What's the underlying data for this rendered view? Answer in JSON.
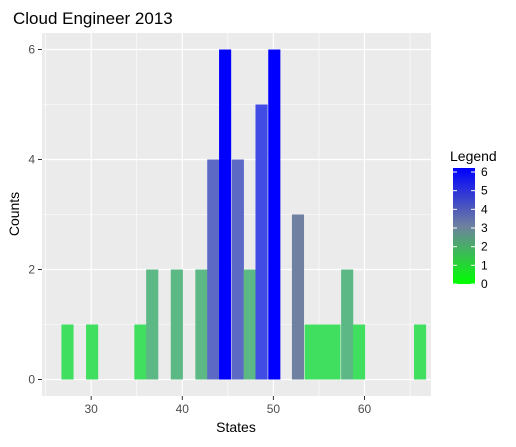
{
  "chart_data": {
    "type": "bar",
    "title": "Cloud Engineer 2013",
    "xlabel": "States",
    "ylabel": "Counts",
    "xlim": [
      24.6,
      67.3
    ],
    "ylim": [
      -0.3,
      6.3
    ],
    "x_ticks": [
      30,
      40,
      50,
      60
    ],
    "y_ticks": [
      0,
      2,
      4,
      6
    ],
    "bin_width": 1.33,
    "bins": [
      {
        "x": 27.4,
        "count": 1
      },
      {
        "x": 30.1,
        "count": 1
      },
      {
        "x": 35.4,
        "count": 1
      },
      {
        "x": 36.7,
        "count": 2
      },
      {
        "x": 39.4,
        "count": 2
      },
      {
        "x": 42.1,
        "count": 2
      },
      {
        "x": 43.4,
        "count": 4
      },
      {
        "x": 44.7,
        "count": 6
      },
      {
        "x": 46.1,
        "count": 4
      },
      {
        "x": 47.4,
        "count": 2
      },
      {
        "x": 48.7,
        "count": 5
      },
      {
        "x": 50.1,
        "count": 6
      },
      {
        "x": 52.7,
        "count": 3
      },
      {
        "x": 54.1,
        "count": 1
      },
      {
        "x": 55.4,
        "count": 1
      },
      {
        "x": 56.7,
        "count": 1
      },
      {
        "x": 58.1,
        "count": 2
      },
      {
        "x": 59.4,
        "count": 1
      },
      {
        "x": 66.1,
        "count": 1
      }
    ],
    "fill_scale": {
      "low": "#00ff00",
      "high": "#0000ff",
      "min": 0,
      "max": 6
    },
    "panel_background": "#ebebeb",
    "grid": true,
    "legend": {
      "title": "Legend",
      "position": "right",
      "labels": [
        "6",
        "5",
        "4",
        "3",
        "2",
        "1",
        "0"
      ]
    }
  }
}
